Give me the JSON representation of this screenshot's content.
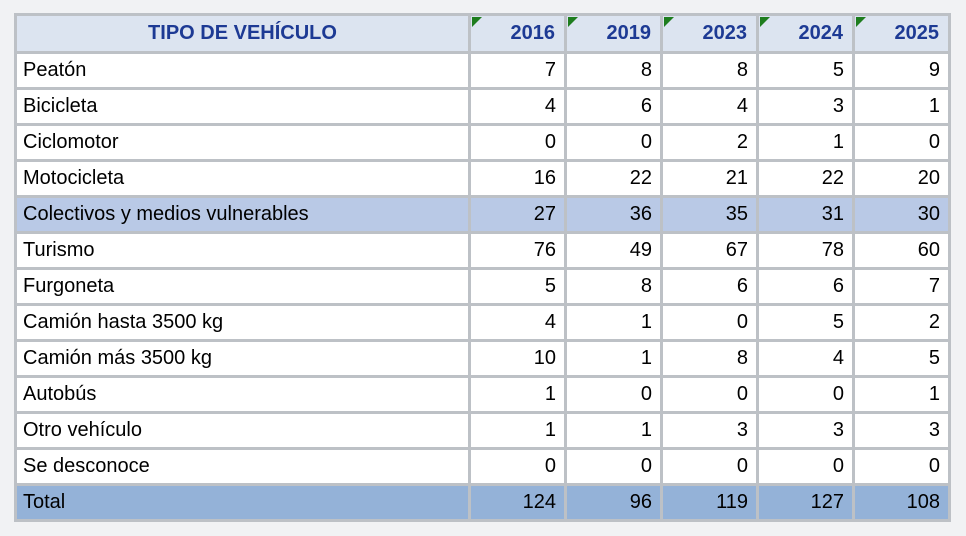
{
  "table": {
    "header": {
      "label": "TIPO DE VEHÍCULO",
      "years": [
        "2016",
        "2019",
        "2023",
        "2024",
        "2025"
      ]
    },
    "rows": [
      {
        "label": "Peatón",
        "values": [
          7,
          8,
          8,
          5,
          9
        ],
        "style": "normal"
      },
      {
        "label": "Bicicleta",
        "values": [
          4,
          6,
          4,
          3,
          1
        ],
        "style": "normal"
      },
      {
        "label": "Ciclomotor",
        "values": [
          0,
          0,
          2,
          1,
          0
        ],
        "style": "normal"
      },
      {
        "label": "Motocicleta",
        "values": [
          16,
          22,
          21,
          22,
          20
        ],
        "style": "normal"
      },
      {
        "label": "Colectivos y medios vulnerables",
        "values": [
          27,
          36,
          35,
          31,
          30
        ],
        "style": "subtotal"
      },
      {
        "label": "Turismo",
        "values": [
          76,
          49,
          67,
          78,
          60
        ],
        "style": "normal"
      },
      {
        "label": "Furgoneta",
        "values": [
          5,
          8,
          6,
          6,
          7
        ],
        "style": "normal"
      },
      {
        "label": "Camión hasta 3500 kg",
        "values": [
          4,
          1,
          0,
          5,
          2
        ],
        "style": "normal"
      },
      {
        "label": "Camión más 3500 kg",
        "values": [
          10,
          1,
          8,
          4,
          5
        ],
        "style": "normal"
      },
      {
        "label": "Autobús",
        "values": [
          1,
          0,
          0,
          0,
          1
        ],
        "style": "normal"
      },
      {
        "label": "Otro vehículo",
        "values": [
          1,
          1,
          3,
          3,
          3
        ],
        "style": "normal"
      },
      {
        "label": "Se desconoce",
        "values": [
          0,
          0,
          0,
          0,
          0
        ],
        "style": "normal"
      },
      {
        "label": "Total",
        "values": [
          124,
          96,
          119,
          127,
          108
        ],
        "style": "total"
      }
    ]
  },
  "colors": {
    "header_bg": "#dce4f0",
    "header_text": "#1d3a94",
    "subtotal_row_bg": "#b9c9e6",
    "total_row_bg": "#94b2d8",
    "gridline": "#bdc1c6",
    "outer_border": "#8f9296",
    "comment_marker_green": "#1e7d1e",
    "page_bg": "#f1f2f4"
  },
  "icons": {
    "comment_marker": "green corner triangle"
  }
}
